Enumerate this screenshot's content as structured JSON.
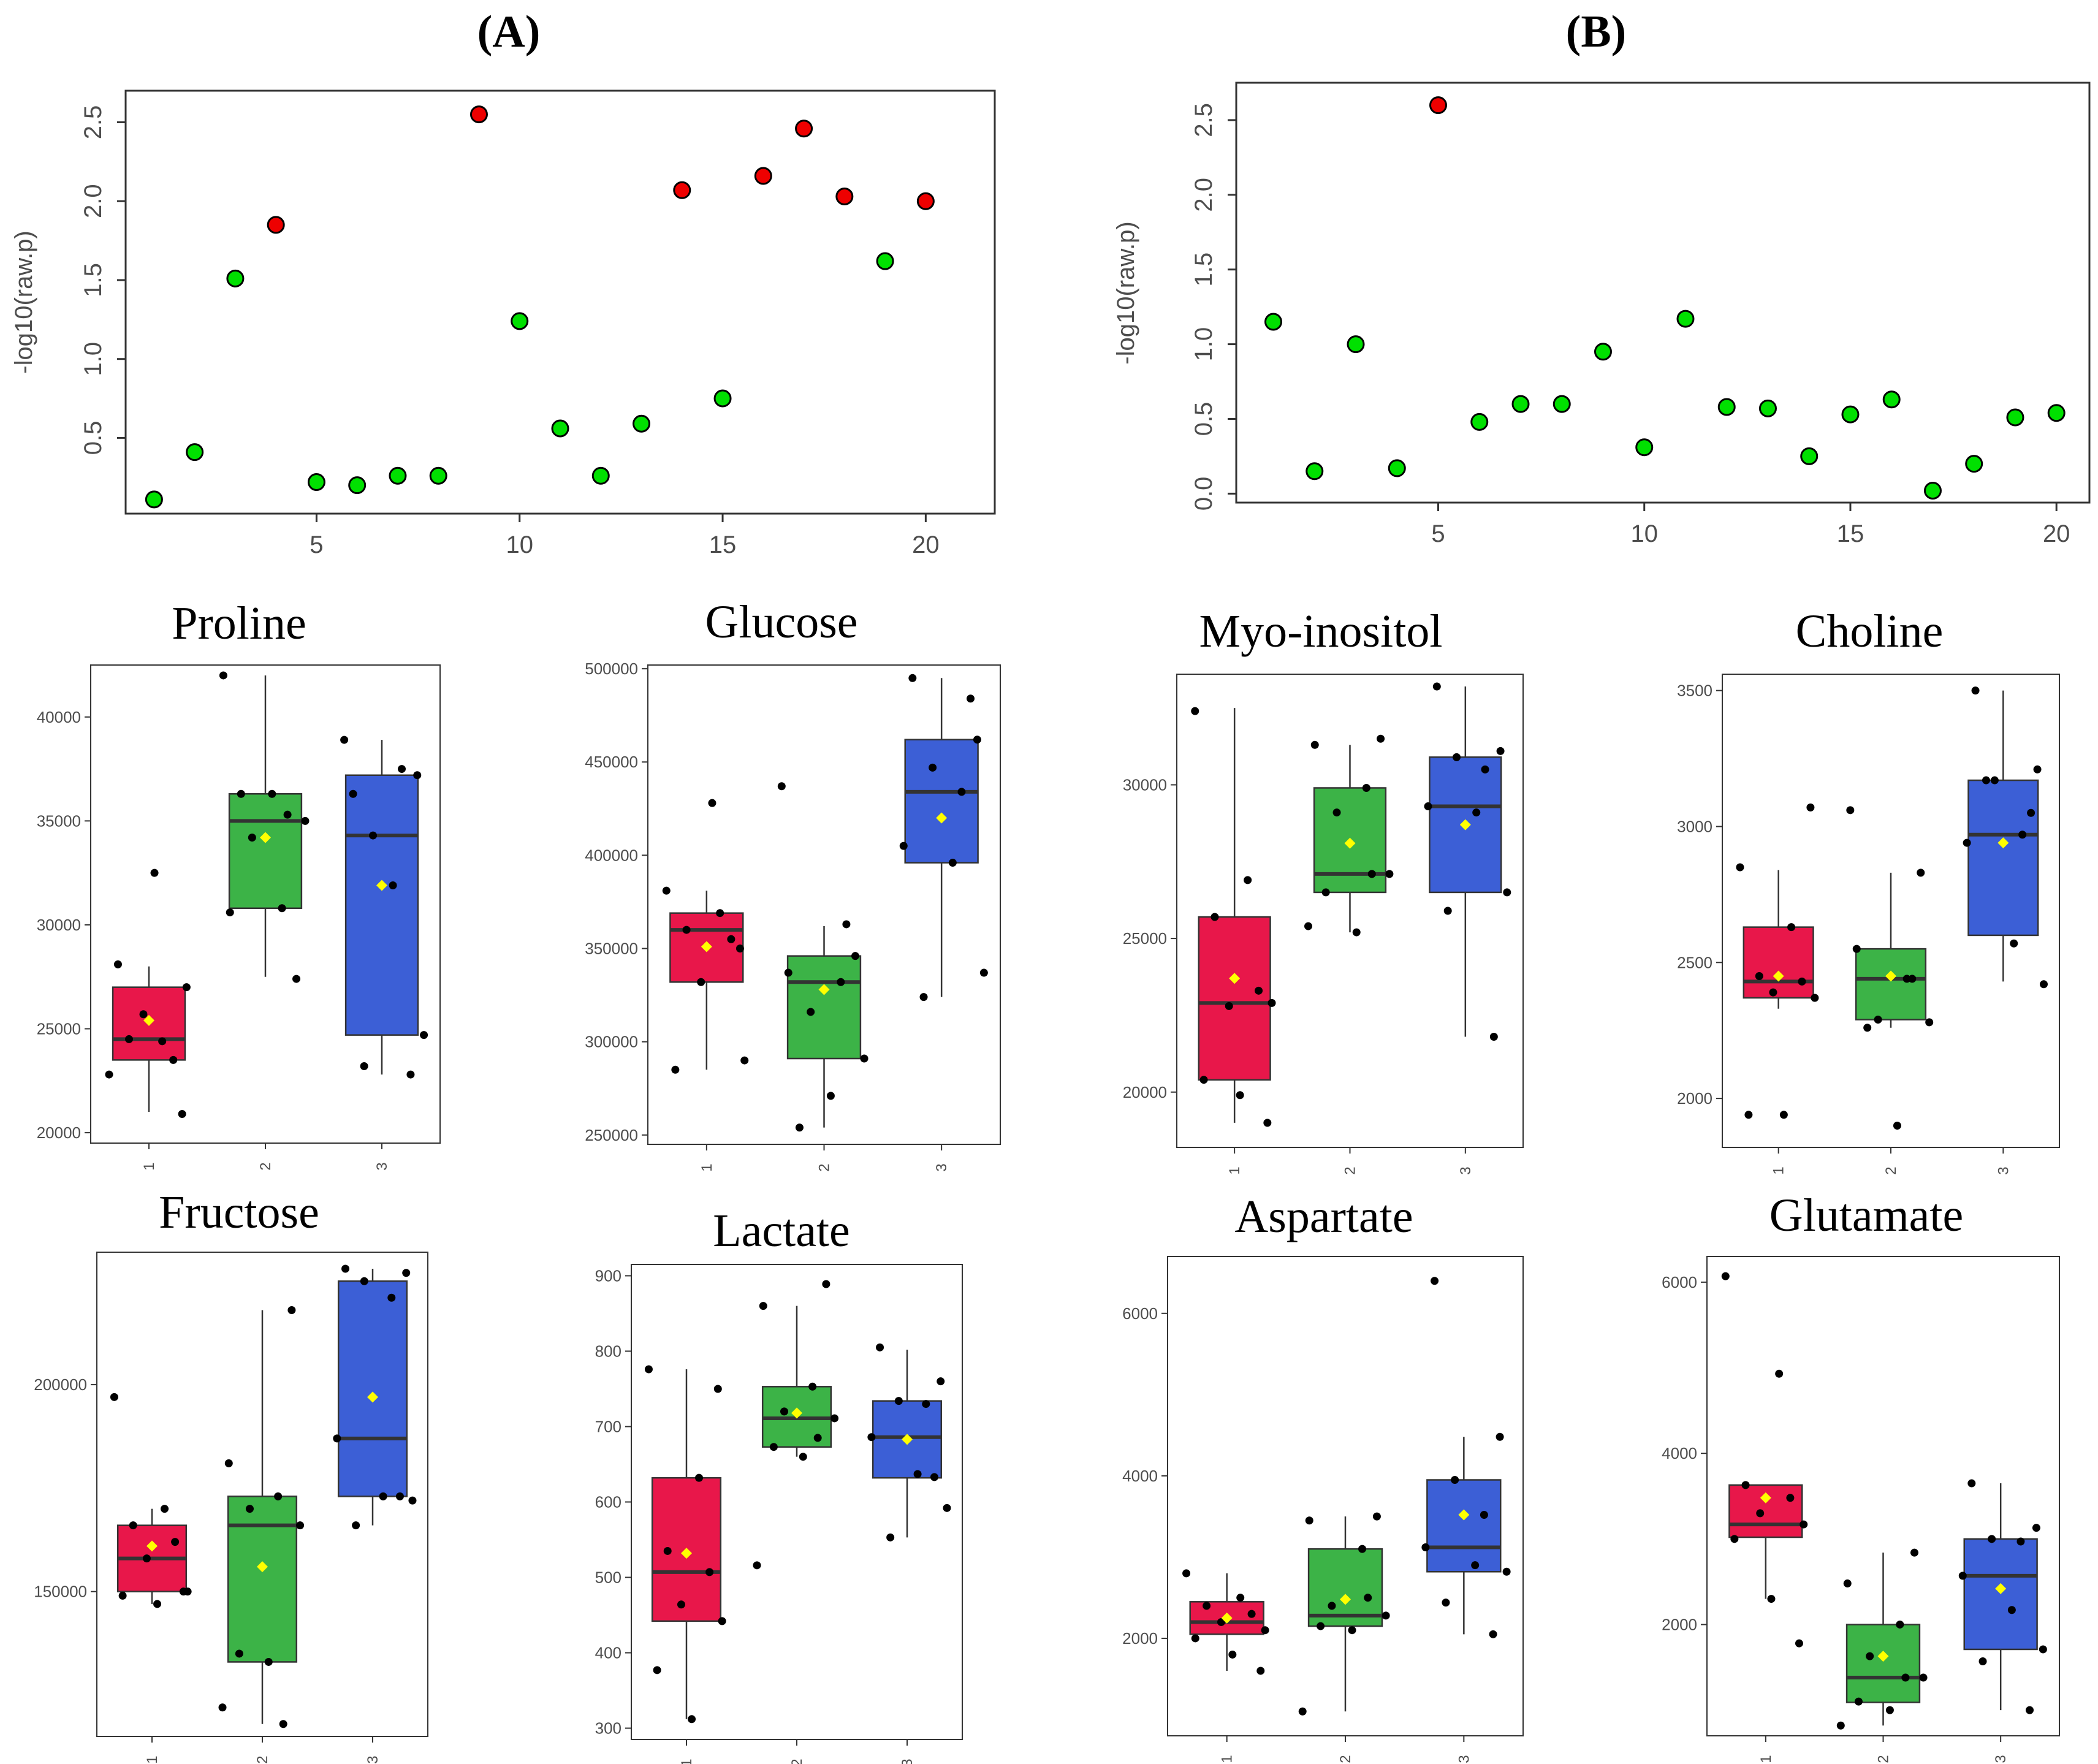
{
  "panel_labels": {
    "a": "A",
    "b": "B"
  },
  "colors": {
    "significant": "#ee0000",
    "nonsignificant": "#00e000",
    "group1": "#e8174a",
    "group2": "#3cb347",
    "group3": "#3c5fd6",
    "mean": "#ffff00"
  },
  "chart_data": [
    {
      "type": "scatter",
      "panel": "A",
      "ylabel": "-log10(raw.p)",
      "xlim": [
        0.3,
        21.7
      ],
      "ylim": [
        0.02,
        2.7
      ],
      "xticks": [
        5,
        10,
        15,
        20
      ],
      "yticks": [
        0.5,
        1.0,
        1.5,
        2.0,
        2.5
      ],
      "ytick_labels": [
        "0.5",
        "1.0",
        "1.5",
        "2.0",
        "2.5"
      ],
      "x": [
        1,
        2,
        3,
        4,
        5,
        6,
        7,
        8,
        9,
        10,
        11,
        12,
        13,
        14,
        15,
        16,
        17,
        18,
        19,
        20
      ],
      "y": [
        0.11,
        0.41,
        1.51,
        1.85,
        0.22,
        0.2,
        0.26,
        0.26,
        2.55,
        1.24,
        0.56,
        0.26,
        0.59,
        2.07,
        0.75,
        2.16,
        2.46,
        2.03,
        1.62,
        2.0
      ],
      "significant": [
        false,
        false,
        false,
        true,
        false,
        false,
        false,
        false,
        true,
        false,
        false,
        false,
        false,
        true,
        false,
        true,
        true,
        true,
        false,
        true
      ]
    },
    {
      "type": "scatter",
      "panel": "B",
      "ylabel": "-log10(raw.p)",
      "xlim": [
        0.1,
        20.8
      ],
      "ylim": [
        -0.06,
        2.75
      ],
      "xticks": [
        5,
        10,
        15,
        20
      ],
      "yticks": [
        0.0,
        0.5,
        1.0,
        1.5,
        2.0,
        2.5
      ],
      "ytick_labels": [
        "0.0",
        "0.5",
        "1.0",
        "1.5",
        "2.0",
        "2.5"
      ],
      "x": [
        1,
        2,
        3,
        4,
        5,
        6,
        7,
        8,
        9,
        10,
        11,
        12,
        13,
        14,
        15,
        16,
        17,
        18,
        19,
        20
      ],
      "y": [
        1.15,
        0.15,
        1.0,
        0.17,
        2.6,
        0.48,
        0.6,
        0.6,
        0.95,
        0.31,
        1.17,
        0.58,
        0.57,
        0.25,
        0.53,
        0.63,
        0.02,
        0.2,
        0.51,
        0.54
      ],
      "significant": [
        false,
        false,
        false,
        false,
        true,
        false,
        false,
        false,
        false,
        false,
        false,
        false,
        false,
        false,
        false,
        false,
        false,
        false,
        false,
        false
      ]
    },
    {
      "type": "box",
      "title": "Proline",
      "categories": [
        "1",
        "2",
        "3"
      ],
      "ylim": [
        19500,
        42500
      ],
      "yticks": [
        20000,
        25000,
        30000,
        35000,
        40000
      ],
      "boxes": [
        {
          "q1": 23500,
          "median": 24500,
          "q3": 27000,
          "whisker_low": 21000,
          "whisker_high": 28000,
          "mean": 25400,
          "points": [
            22800,
            24400,
            24500,
            23500,
            25700,
            27000,
            28100,
            32500,
            20900
          ]
        },
        {
          "q1": 30800,
          "median": 35000,
          "q3": 36300,
          "whisker_low": 27500,
          "whisker_high": 42000,
          "mean": 34200,
          "points": [
            27400,
            30600,
            30800,
            34200,
            35000,
            36300,
            36300,
            42000,
            35300
          ]
        },
        {
          "q1": 24700,
          "median": 34300,
          "q3": 37200,
          "whisker_low": 22800,
          "whisker_high": 38900,
          "mean": 31900,
          "points": [
            36300,
            37200,
            34300,
            37500,
            38900,
            31900,
            24700,
            23200,
            22800
          ]
        }
      ]
    },
    {
      "type": "box",
      "title": "Glucose",
      "categories": [
        "1",
        "2",
        "3"
      ],
      "ylim": [
        245000,
        502000
      ],
      "yticks": [
        250000,
        300000,
        350000,
        400000,
        450000,
        500000
      ],
      "boxes": [
        {
          "q1": 332000,
          "median": 360000,
          "q3": 369000,
          "whisker_low": 285000,
          "whisker_high": 381000,
          "mean": 351000,
          "points": [
            381000,
            369000,
            360000,
            355000,
            332000,
            290000,
            285000,
            428000,
            350000
          ]
        },
        {
          "q1": 291000,
          "median": 332000,
          "q3": 346000,
          "whisker_low": 254000,
          "whisker_high": 362000,
          "mean": 328000,
          "points": [
            346000,
            337000,
            332000,
            316000,
            291000,
            254000,
            271000,
            437000,
            363000
          ]
        },
        {
          "q1": 396000,
          "median": 434000,
          "q3": 462000,
          "whisker_low": 324000,
          "whisker_high": 495000,
          "mean": 420000,
          "points": [
            495000,
            462000,
            447000,
            434000,
            405000,
            396000,
            337000,
            324000,
            484000
          ]
        }
      ]
    },
    {
      "type": "box",
      "title": "Myo-inositol",
      "categories": [
        "1",
        "2",
        "3"
      ],
      "ylim": [
        18200,
        33600
      ],
      "yticks": [
        20000,
        25000,
        30000
      ],
      "boxes": [
        {
          "q1": 20400,
          "median": 22900,
          "q3": 25700,
          "whisker_low": 19000,
          "whisker_high": 32500,
          "mean": 23700,
          "points": [
            32400,
            26900,
            25700,
            23300,
            22800,
            22900,
            20400,
            19900,
            19000
          ]
        },
        {
          "q1": 26500,
          "median": 27100,
          "q3": 29900,
          "whisker_low": 25200,
          "whisker_high": 31300,
          "mean": 28100,
          "points": [
            31500,
            31300,
            29900,
            29100,
            27100,
            26500,
            25200,
            25400,
            27100
          ]
        },
        {
          "q1": 26500,
          "median": 29300,
          "q3": 30900,
          "whisker_low": 21800,
          "whisker_high": 33200,
          "mean": 28700,
          "points": [
            33200,
            31100,
            30900,
            30500,
            29300,
            29100,
            26500,
            25900,
            21800
          ]
        }
      ]
    },
    {
      "type": "box",
      "title": "Choline",
      "categories": [
        "1",
        "2",
        "3"
      ],
      "ylim": [
        1820,
        3560
      ],
      "yticks": [
        2000,
        2500,
        3000,
        3500
      ],
      "boxes": [
        {
          "q1": 2370,
          "median": 2430,
          "q3": 2630,
          "whisker_low": 2330,
          "whisker_high": 2840,
          "mean": 2450,
          "points": [
            2850,
            2630,
            2450,
            2430,
            2390,
            2370,
            1940,
            1940,
            3070
          ]
        },
        {
          "q1": 2290,
          "median": 2440,
          "q3": 2550,
          "whisker_low": 2260,
          "whisker_high": 2830,
          "mean": 2450,
          "points": [
            2830,
            2550,
            2440,
            2290,
            2280,
            2260,
            1900,
            3060,
            2440
          ]
        },
        {
          "q1": 2600,
          "median": 2970,
          "q3": 3170,
          "whisker_low": 2430,
          "whisker_high": 3500,
          "mean": 2940,
          "points": [
            3500,
            3210,
            3170,
            2970,
            2940,
            2570,
            2420,
            3170,
            3050
          ]
        }
      ]
    },
    {
      "type": "box",
      "title": "Fructose",
      "categories": [
        "1",
        "2",
        "3"
      ],
      "ylim": [
        115000,
        232000
      ],
      "yticks": [
        150000,
        200000
      ],
      "boxes": [
        {
          "q1": 150000,
          "median": 158000,
          "q3": 166000,
          "whisker_low": 147000,
          "whisker_high": 170000,
          "mean": 161000,
          "points": [
            197000,
            170000,
            166000,
            162000,
            158000,
            150000,
            149000,
            147000,
            150000
          ]
        },
        {
          "q1": 133000,
          "median": 166000,
          "q3": 173000,
          "whisker_low": 118000,
          "whisker_high": 218000,
          "mean": 156000,
          "points": [
            218000,
            181000,
            173000,
            170000,
            166000,
            135000,
            133000,
            122000,
            118000
          ]
        },
        {
          "q1": 173000,
          "median": 187000,
          "q3": 225000,
          "whisker_low": 166000,
          "whisker_high": 228000,
          "mean": 197000,
          "points": [
            228000,
            227000,
            225000,
            221000,
            187000,
            173000,
            172000,
            166000,
            173000
          ]
        }
      ]
    },
    {
      "type": "box",
      "title": "Lactate",
      "categories": [
        "1",
        "2",
        "3"
      ],
      "ylim": [
        285,
        915
      ],
      "yticks": [
        300,
        400,
        500,
        600,
        700,
        800,
        900
      ],
      "boxes": [
        {
          "q1": 442,
          "median": 507,
          "q3": 632,
          "whisker_low": 312,
          "whisker_high": 776,
          "mean": 532,
          "points": [
            776,
            632,
            535,
            507,
            464,
            442,
            377,
            312,
            750
          ]
        },
        {
          "q1": 673,
          "median": 711,
          "q3": 753,
          "whisker_low": 660,
          "whisker_high": 860,
          "mean": 718,
          "points": [
            889,
            860,
            753,
            720,
            711,
            673,
            660,
            516,
            685
          ]
        },
        {
          "q1": 632,
          "median": 686,
          "q3": 734,
          "whisker_low": 553,
          "whisker_high": 802,
          "mean": 683,
          "points": [
            805,
            760,
            734,
            730,
            686,
            637,
            592,
            553,
            633
          ]
        }
      ]
    },
    {
      "type": "box",
      "title": "Aspartate",
      "categories": [
        "1",
        "2",
        "3"
      ],
      "ylim": [
        800,
        6700
      ],
      "yticks": [
        2000,
        4000,
        6000
      ],
      "boxes": [
        {
          "q1": 2050,
          "median": 2200,
          "q3": 2450,
          "whisker_low": 1600,
          "whisker_high": 2800,
          "mean": 2250,
          "points": [
            2800,
            2500,
            2400,
            2300,
            2200,
            2100,
            2000,
            1800,
            1600
          ]
        },
        {
          "q1": 2150,
          "median": 2280,
          "q3": 3100,
          "whisker_low": 1100,
          "whisker_high": 3500,
          "mean": 2480,
          "points": [
            3500,
            3450,
            3100,
            2400,
            2280,
            2150,
            2100,
            1100,
            2500
          ]
        },
        {
          "q1": 2820,
          "median": 3120,
          "q3": 3950,
          "whisker_low": 2050,
          "whisker_high": 4480,
          "mean": 3520,
          "points": [
            6400,
            4480,
            3950,
            3520,
            3120,
            2900,
            2820,
            2440,
            2050
          ]
        }
      ]
    },
    {
      "type": "box",
      "title": "Glutamate",
      "categories": [
        "1",
        "2",
        "3"
      ],
      "ylim": [
        700,
        6300
      ],
      "yticks": [
        2000,
        4000,
        6000
      ],
      "boxes": [
        {
          "q1": 3020,
          "median": 3170,
          "q3": 3630,
          "whisker_low": 2300,
          "whisker_high": 3630,
          "mean": 3480,
          "points": [
            6070,
            4930,
            3630,
            3480,
            3300,
            3170,
            3000,
            2300,
            1780
          ]
        },
        {
          "q1": 1090,
          "median": 1380,
          "q3": 2000,
          "whisker_low": 820,
          "whisker_high": 2840,
          "mean": 1630,
          "points": [
            2840,
            2480,
            2000,
            1630,
            1380,
            1100,
            1000,
            820,
            1380
          ]
        },
        {
          "q1": 1710,
          "median": 2570,
          "q3": 3000,
          "whisker_low": 1000,
          "whisker_high": 3650,
          "mean": 2420,
          "points": [
            3650,
            3130,
            3000,
            2970,
            2570,
            2170,
            1710,
            1570,
            1000
          ]
        }
      ]
    }
  ]
}
